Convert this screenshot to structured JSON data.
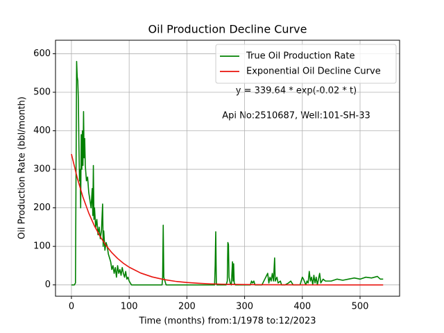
{
  "chart_data": {
    "type": "line",
    "title": "Oil Production Decline Curve",
    "xlabel": "Time (months) from:1/1978 to:12/2023",
    "ylabel": "Oil Production Rate (bbl/month)",
    "annotations": [
      "y = 339.64 * exp(-0.02 * t)",
      "Api No:2510687, Well:101-SH-33"
    ],
    "xlim": [
      -27.6,
      568.5
    ],
    "ylim": [
      -29.4,
      635
    ],
    "xticks": [
      0,
      100,
      200,
      300,
      400,
      500
    ],
    "yticks": [
      0,
      100,
      200,
      300,
      400,
      500,
      600
    ],
    "grid": true,
    "legend": "upper right",
    "series": [
      {
        "name": "True Oil Production Rate",
        "color": "#008000",
        "x": [
          0,
          5,
          7,
          8,
          9,
          10,
          11,
          12,
          13,
          14,
          15,
          16,
          17,
          18,
          19,
          20,
          21,
          22,
          23,
          24,
          26,
          28,
          30,
          32,
          34,
          36,
          37,
          38,
          39,
          40,
          42,
          44,
          46,
          48,
          50,
          52,
          54,
          55,
          56,
          58,
          60,
          62,
          64,
          66,
          68,
          70,
          72,
          74,
          76,
          78,
          80,
          82,
          84,
          86,
          88,
          90,
          92,
          94,
          96,
          98,
          100,
          102,
          104,
          106,
          157,
          158,
          159,
          160,
          162,
          164,
          248,
          249,
          250,
          251,
          252,
          268,
          270,
          271,
          272,
          273,
          275,
          277,
          279,
          280,
          281,
          282,
          284,
          310,
          312,
          314,
          316,
          318,
          330,
          340,
          342,
          344,
          346,
          348,
          350,
          352,
          353,
          356,
          358,
          362,
          364,
          370,
          376,
          380,
          384,
          396,
          400,
          402,
          406,
          408,
          410,
          412,
          414,
          416,
          418,
          420,
          422,
          424,
          426,
          428,
          430,
          432,
          436,
          440,
          450,
          460,
          470,
          480,
          490,
          500,
          510,
          520,
          530,
          535,
          540
        ],
        "values": [
          0,
          0,
          5,
          300,
          580,
          540,
          530,
          480,
          360,
          270,
          300,
          200,
          390,
          300,
          400,
          310,
          450,
          330,
          380,
          310,
          270,
          280,
          240,
          220,
          200,
          250,
          180,
          310,
          170,
          200,
          150,
          170,
          130,
          150,
          120,
          140,
          210,
          100,
          140,
          90,
          110,
          100,
          80,
          70,
          60,
          40,
          50,
          30,
          45,
          20,
          50,
          30,
          40,
          25,
          45,
          30,
          20,
          35,
          15,
          20,
          10,
          5,
          0,
          0,
          0,
          20,
          155,
          20,
          10,
          0,
          0,
          50,
          138,
          5,
          0,
          0,
          10,
          110,
          105,
          20,
          5,
          0,
          60,
          10,
          55,
          5,
          0,
          0,
          10,
          5,
          10,
          0,
          0,
          30,
          5,
          20,
          10,
          30,
          10,
          70,
          10,
          20,
          5,
          10,
          0,
          0,
          5,
          10,
          0,
          0,
          20,
          15,
          0,
          10,
          5,
          35,
          10,
          20,
          0,
          25,
          5,
          20,
          0,
          15,
          30,
          5,
          15,
          10,
          10,
          15,
          12,
          15,
          18,
          15,
          20,
          18,
          22,
          15,
          15
        ]
      },
      {
        "name": "Exponential Oil Decline Curve",
        "color": "#e8120c",
        "x": [
          0,
          10,
          20,
          30,
          40,
          50,
          60,
          70,
          80,
          90,
          100,
          120,
          140,
          160,
          180,
          200,
          220,
          240,
          260,
          280,
          300,
          340,
          380,
          420,
          460,
          500,
          540
        ],
        "values": [
          339.6,
          278.1,
          227.7,
          186.4,
          152.6,
          124.9,
          102.3,
          83.7,
          68.6,
          56.1,
          46.0,
          30.8,
          20.7,
          13.9,
          9.3,
          6.2,
          4.2,
          2.8,
          1.9,
          1.3,
          0.8,
          0.4,
          0.2,
          0.1,
          0.0,
          0.0,
          0.0
        ]
      }
    ]
  }
}
